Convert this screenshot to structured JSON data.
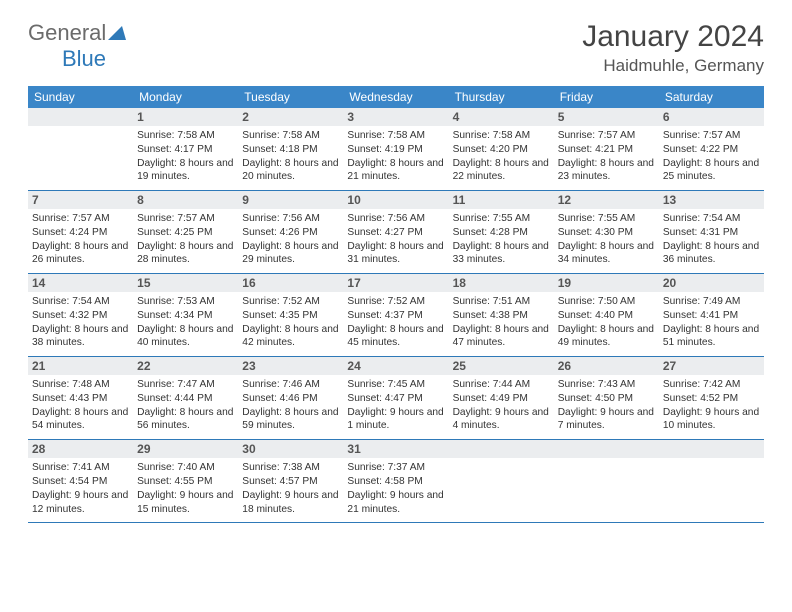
{
  "logo": {
    "part1": "General",
    "part2": "Blue"
  },
  "title": "January 2024",
  "location": "Haidmuhle, Germany",
  "colors": {
    "header_bg": "#3a86c8",
    "header_text": "#ffffff",
    "daynum_bg": "#ebedef",
    "daynum_text": "#555555",
    "body_text": "#333333",
    "rule": "#2e79b8",
    "logo_gray": "#6b6b6b",
    "logo_blue": "#2e79b8",
    "title_color": "#444444"
  },
  "dayNames": [
    "Sunday",
    "Monday",
    "Tuesday",
    "Wednesday",
    "Thursday",
    "Friday",
    "Saturday"
  ],
  "weeks": [
    [
      {
        "n": "",
        "sr": "",
        "ss": "",
        "dl": ""
      },
      {
        "n": "1",
        "sr": "7:58 AM",
        "ss": "4:17 PM",
        "dl": "8 hours and 19 minutes."
      },
      {
        "n": "2",
        "sr": "7:58 AM",
        "ss": "4:18 PM",
        "dl": "8 hours and 20 minutes."
      },
      {
        "n": "3",
        "sr": "7:58 AM",
        "ss": "4:19 PM",
        "dl": "8 hours and 21 minutes."
      },
      {
        "n": "4",
        "sr": "7:58 AM",
        "ss": "4:20 PM",
        "dl": "8 hours and 22 minutes."
      },
      {
        "n": "5",
        "sr": "7:57 AM",
        "ss": "4:21 PM",
        "dl": "8 hours and 23 minutes."
      },
      {
        "n": "6",
        "sr": "7:57 AM",
        "ss": "4:22 PM",
        "dl": "8 hours and 25 minutes."
      }
    ],
    [
      {
        "n": "7",
        "sr": "7:57 AM",
        "ss": "4:24 PM",
        "dl": "8 hours and 26 minutes."
      },
      {
        "n": "8",
        "sr": "7:57 AM",
        "ss": "4:25 PM",
        "dl": "8 hours and 28 minutes."
      },
      {
        "n": "9",
        "sr": "7:56 AM",
        "ss": "4:26 PM",
        "dl": "8 hours and 29 minutes."
      },
      {
        "n": "10",
        "sr": "7:56 AM",
        "ss": "4:27 PM",
        "dl": "8 hours and 31 minutes."
      },
      {
        "n": "11",
        "sr": "7:55 AM",
        "ss": "4:28 PM",
        "dl": "8 hours and 33 minutes."
      },
      {
        "n": "12",
        "sr": "7:55 AM",
        "ss": "4:30 PM",
        "dl": "8 hours and 34 minutes."
      },
      {
        "n": "13",
        "sr": "7:54 AM",
        "ss": "4:31 PM",
        "dl": "8 hours and 36 minutes."
      }
    ],
    [
      {
        "n": "14",
        "sr": "7:54 AM",
        "ss": "4:32 PM",
        "dl": "8 hours and 38 minutes."
      },
      {
        "n": "15",
        "sr": "7:53 AM",
        "ss": "4:34 PM",
        "dl": "8 hours and 40 minutes."
      },
      {
        "n": "16",
        "sr": "7:52 AM",
        "ss": "4:35 PM",
        "dl": "8 hours and 42 minutes."
      },
      {
        "n": "17",
        "sr": "7:52 AM",
        "ss": "4:37 PM",
        "dl": "8 hours and 45 minutes."
      },
      {
        "n": "18",
        "sr": "7:51 AM",
        "ss": "4:38 PM",
        "dl": "8 hours and 47 minutes."
      },
      {
        "n": "19",
        "sr": "7:50 AM",
        "ss": "4:40 PM",
        "dl": "8 hours and 49 minutes."
      },
      {
        "n": "20",
        "sr": "7:49 AM",
        "ss": "4:41 PM",
        "dl": "8 hours and 51 minutes."
      }
    ],
    [
      {
        "n": "21",
        "sr": "7:48 AM",
        "ss": "4:43 PM",
        "dl": "8 hours and 54 minutes."
      },
      {
        "n": "22",
        "sr": "7:47 AM",
        "ss": "4:44 PM",
        "dl": "8 hours and 56 minutes."
      },
      {
        "n": "23",
        "sr": "7:46 AM",
        "ss": "4:46 PM",
        "dl": "8 hours and 59 minutes."
      },
      {
        "n": "24",
        "sr": "7:45 AM",
        "ss": "4:47 PM",
        "dl": "9 hours and 1 minute."
      },
      {
        "n": "25",
        "sr": "7:44 AM",
        "ss": "4:49 PM",
        "dl": "9 hours and 4 minutes."
      },
      {
        "n": "26",
        "sr": "7:43 AM",
        "ss": "4:50 PM",
        "dl": "9 hours and 7 minutes."
      },
      {
        "n": "27",
        "sr": "7:42 AM",
        "ss": "4:52 PM",
        "dl": "9 hours and 10 minutes."
      }
    ],
    [
      {
        "n": "28",
        "sr": "7:41 AM",
        "ss": "4:54 PM",
        "dl": "9 hours and 12 minutes."
      },
      {
        "n": "29",
        "sr": "7:40 AM",
        "ss": "4:55 PM",
        "dl": "9 hours and 15 minutes."
      },
      {
        "n": "30",
        "sr": "7:38 AM",
        "ss": "4:57 PM",
        "dl": "9 hours and 18 minutes."
      },
      {
        "n": "31",
        "sr": "7:37 AM",
        "ss": "4:58 PM",
        "dl": "9 hours and 21 minutes."
      },
      {
        "n": "",
        "sr": "",
        "ss": "",
        "dl": ""
      },
      {
        "n": "",
        "sr": "",
        "ss": "",
        "dl": ""
      },
      {
        "n": "",
        "sr": "",
        "ss": "",
        "dl": ""
      }
    ]
  ],
  "labels": {
    "sunrise": "Sunrise:",
    "sunset": "Sunset:",
    "daylight": "Daylight:"
  }
}
